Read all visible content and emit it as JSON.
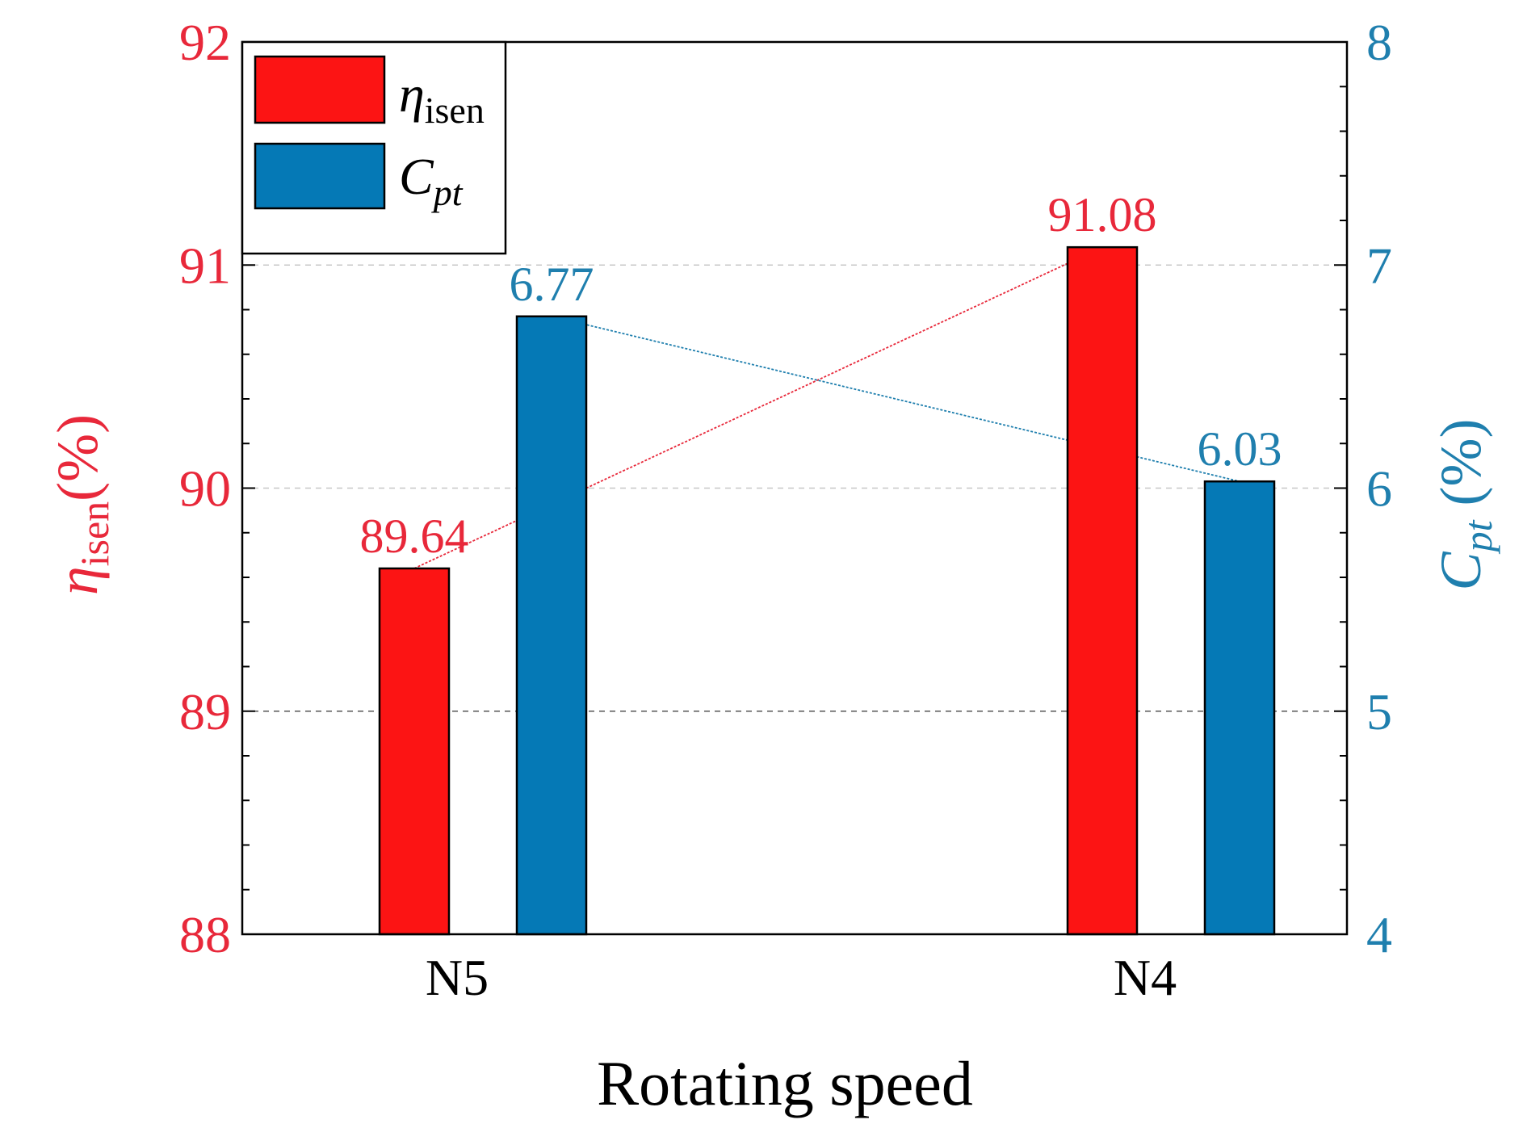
{
  "chart_data": {
    "type": "bar",
    "categories": [
      "N5",
      "N4"
    ],
    "xlabel": "Rotating speed",
    "axes": {
      "left": {
        "label_symbol": "η",
        "label_subscript": "isen",
        "label_unit": "(%)",
        "ylim": [
          88,
          92
        ],
        "ticks": [
          "88",
          "89",
          "90",
          "91",
          "92"
        ],
        "color": "#e8283a"
      },
      "right": {
        "label_symbol": "C",
        "label_subscript": "pt",
        "label_unit": " (%)",
        "ylim": [
          4,
          8
        ],
        "ticks": [
          "4",
          "5",
          "6",
          "7",
          "8"
        ],
        "color": "#1f7fae"
      }
    },
    "series": [
      {
        "name": "η isen",
        "legend_symbol": "η",
        "legend_subscript": "isen",
        "axis": "left",
        "values": [
          89.64,
          91.08
        ],
        "labels": [
          "89.64",
          "91.08"
        ],
        "bar_color": "#fc1414",
        "text_color": "#e8283a",
        "line_color": "#e8283a"
      },
      {
        "name": "C pt",
        "legend_symbol": "C",
        "legend_subscript": "pt",
        "axis": "right",
        "values": [
          6.77,
          6.03
        ],
        "labels": [
          "6.77",
          "6.03"
        ],
        "bar_color": "#0579b6",
        "text_color": "#1f7fae",
        "line_color": "#1f7fae"
      }
    ],
    "gridlines_at_left": [
      89,
      90,
      91
    ],
    "legend_position": "top-left"
  }
}
